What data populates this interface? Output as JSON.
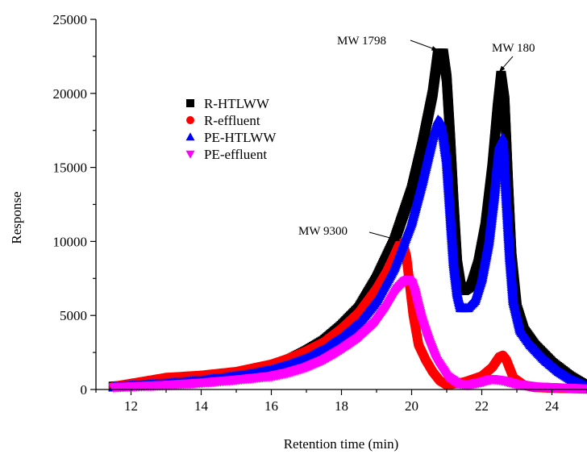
{
  "chart_data": {
    "type": "scatter",
    "title": "",
    "xlabel": "Retention time (min)",
    "ylabel": "Response",
    "xlim": [
      11,
      25
    ],
    "ylim": [
      0,
      25000
    ],
    "xticks": [
      12,
      14,
      16,
      18,
      20,
      22,
      24
    ],
    "yticks": [
      0,
      5000,
      10000,
      15000,
      20000,
      25000
    ],
    "grid": false,
    "legend_position": "top-left",
    "series": [
      {
        "name": "R-HTLWW",
        "color": "#000000",
        "marker": "square",
        "x": [
          11.5,
          12,
          13,
          14,
          15,
          16,
          16.5,
          17,
          17.5,
          18,
          18.5,
          19,
          19.5,
          20,
          20.3,
          20.6,
          20.75,
          20.9,
          21.0,
          21.1,
          21.2,
          21.3,
          21.4,
          21.5,
          21.7,
          21.9,
          22.1,
          22.3,
          22.45,
          22.55,
          22.65,
          22.75,
          22.85,
          23.0,
          23.2,
          23.5,
          24,
          24.5,
          25
        ],
        "y": [
          200,
          300,
          500,
          750,
          1050,
          1600,
          2000,
          2600,
          3300,
          4300,
          5500,
          7500,
          10000,
          13500,
          16500,
          20000,
          22700,
          22700,
          21000,
          17000,
          12500,
          8500,
          7000,
          6700,
          7000,
          8500,
          11000,
          15000,
          19000,
          21200,
          19500,
          14000,
          9000,
          5500,
          4000,
          3000,
          1800,
          900,
          200
        ]
      },
      {
        "name": "R-effluent",
        "color": "#ff0000",
        "marker": "circle",
        "x": [
          11.5,
          12,
          13,
          14,
          15,
          16,
          16.5,
          17,
          17.5,
          18,
          18.5,
          19,
          19.3,
          19.5,
          19.65,
          19.75,
          19.85,
          19.95,
          20.05,
          20.2,
          20.4,
          20.6,
          20.8,
          21.0,
          21.5,
          22.0,
          22.3,
          22.5,
          22.6,
          22.7,
          22.9,
          23.2,
          23.5,
          24,
          25
        ],
        "y": [
          200,
          400,
          800,
          950,
          1200,
          1700,
          2100,
          2600,
          3200,
          4100,
          5200,
          6800,
          8000,
          9000,
          9800,
          9900,
          9000,
          7000,
          5000,
          3000,
          2000,
          1200,
          600,
          300,
          500,
          900,
          1500,
          2200,
          2300,
          2000,
          800,
          300,
          150,
          100,
          50
        ]
      },
      {
        "name": "PE-HTLWW",
        "color": "#0000ff",
        "marker": "triangle-up",
        "x": [
          11.5,
          12,
          13,
          14,
          15,
          16,
          16.5,
          17,
          17.5,
          18,
          18.5,
          19,
          19.5,
          20,
          20.3,
          20.6,
          20.75,
          20.85,
          21.0,
          21.1,
          21.2,
          21.3,
          21.4,
          21.6,
          21.8,
          22.0,
          22.2,
          22.35,
          22.5,
          22.6,
          22.7,
          22.8,
          22.9,
          23.1,
          23.4,
          23.8,
          24.2,
          24.6,
          25
        ],
        "y": [
          150,
          250,
          400,
          600,
          900,
          1300,
          1650,
          2100,
          2700,
          3500,
          4500,
          6000,
          8200,
          11300,
          14000,
          17000,
          18200,
          18000,
          15500,
          12000,
          8500,
          6500,
          5500,
          5500,
          6000,
          7500,
          10000,
          13000,
          16500,
          17000,
          13000,
          9000,
          6000,
          4000,
          3000,
          2000,
          1200,
          600,
          200
        ]
      },
      {
        "name": "PE-effluent",
        "color": "#ff00ff",
        "marker": "triangle-down",
        "x": [
          11.5,
          12,
          13,
          14,
          15,
          16,
          16.5,
          17,
          17.5,
          18,
          18.5,
          19,
          19.3,
          19.6,
          19.8,
          19.9,
          20.0,
          20.1,
          20.2,
          20.3,
          20.5,
          20.7,
          21.0,
          21.3,
          21.6,
          22.0,
          22.3,
          22.6,
          23.0,
          23.5,
          24,
          24.5,
          25
        ],
        "y": [
          150,
          200,
          300,
          450,
          650,
          900,
          1150,
          1500,
          2000,
          2700,
          3500,
          4600,
          5600,
          6800,
          7300,
          7400,
          7200,
          6500,
          5500,
          4600,
          3200,
          2000,
          900,
          400,
          300,
          500,
          700,
          600,
          350,
          200,
          150,
          100,
          50
        ]
      }
    ],
    "annotations": [
      {
        "text": "MW 1798",
        "x": 20.85,
        "y": 22700
      },
      {
        "text": "MW 180",
        "x": 22.6,
        "y": 21200
      },
      {
        "text": "MW 9300",
        "x": 19.75,
        "y": 9900
      }
    ]
  }
}
